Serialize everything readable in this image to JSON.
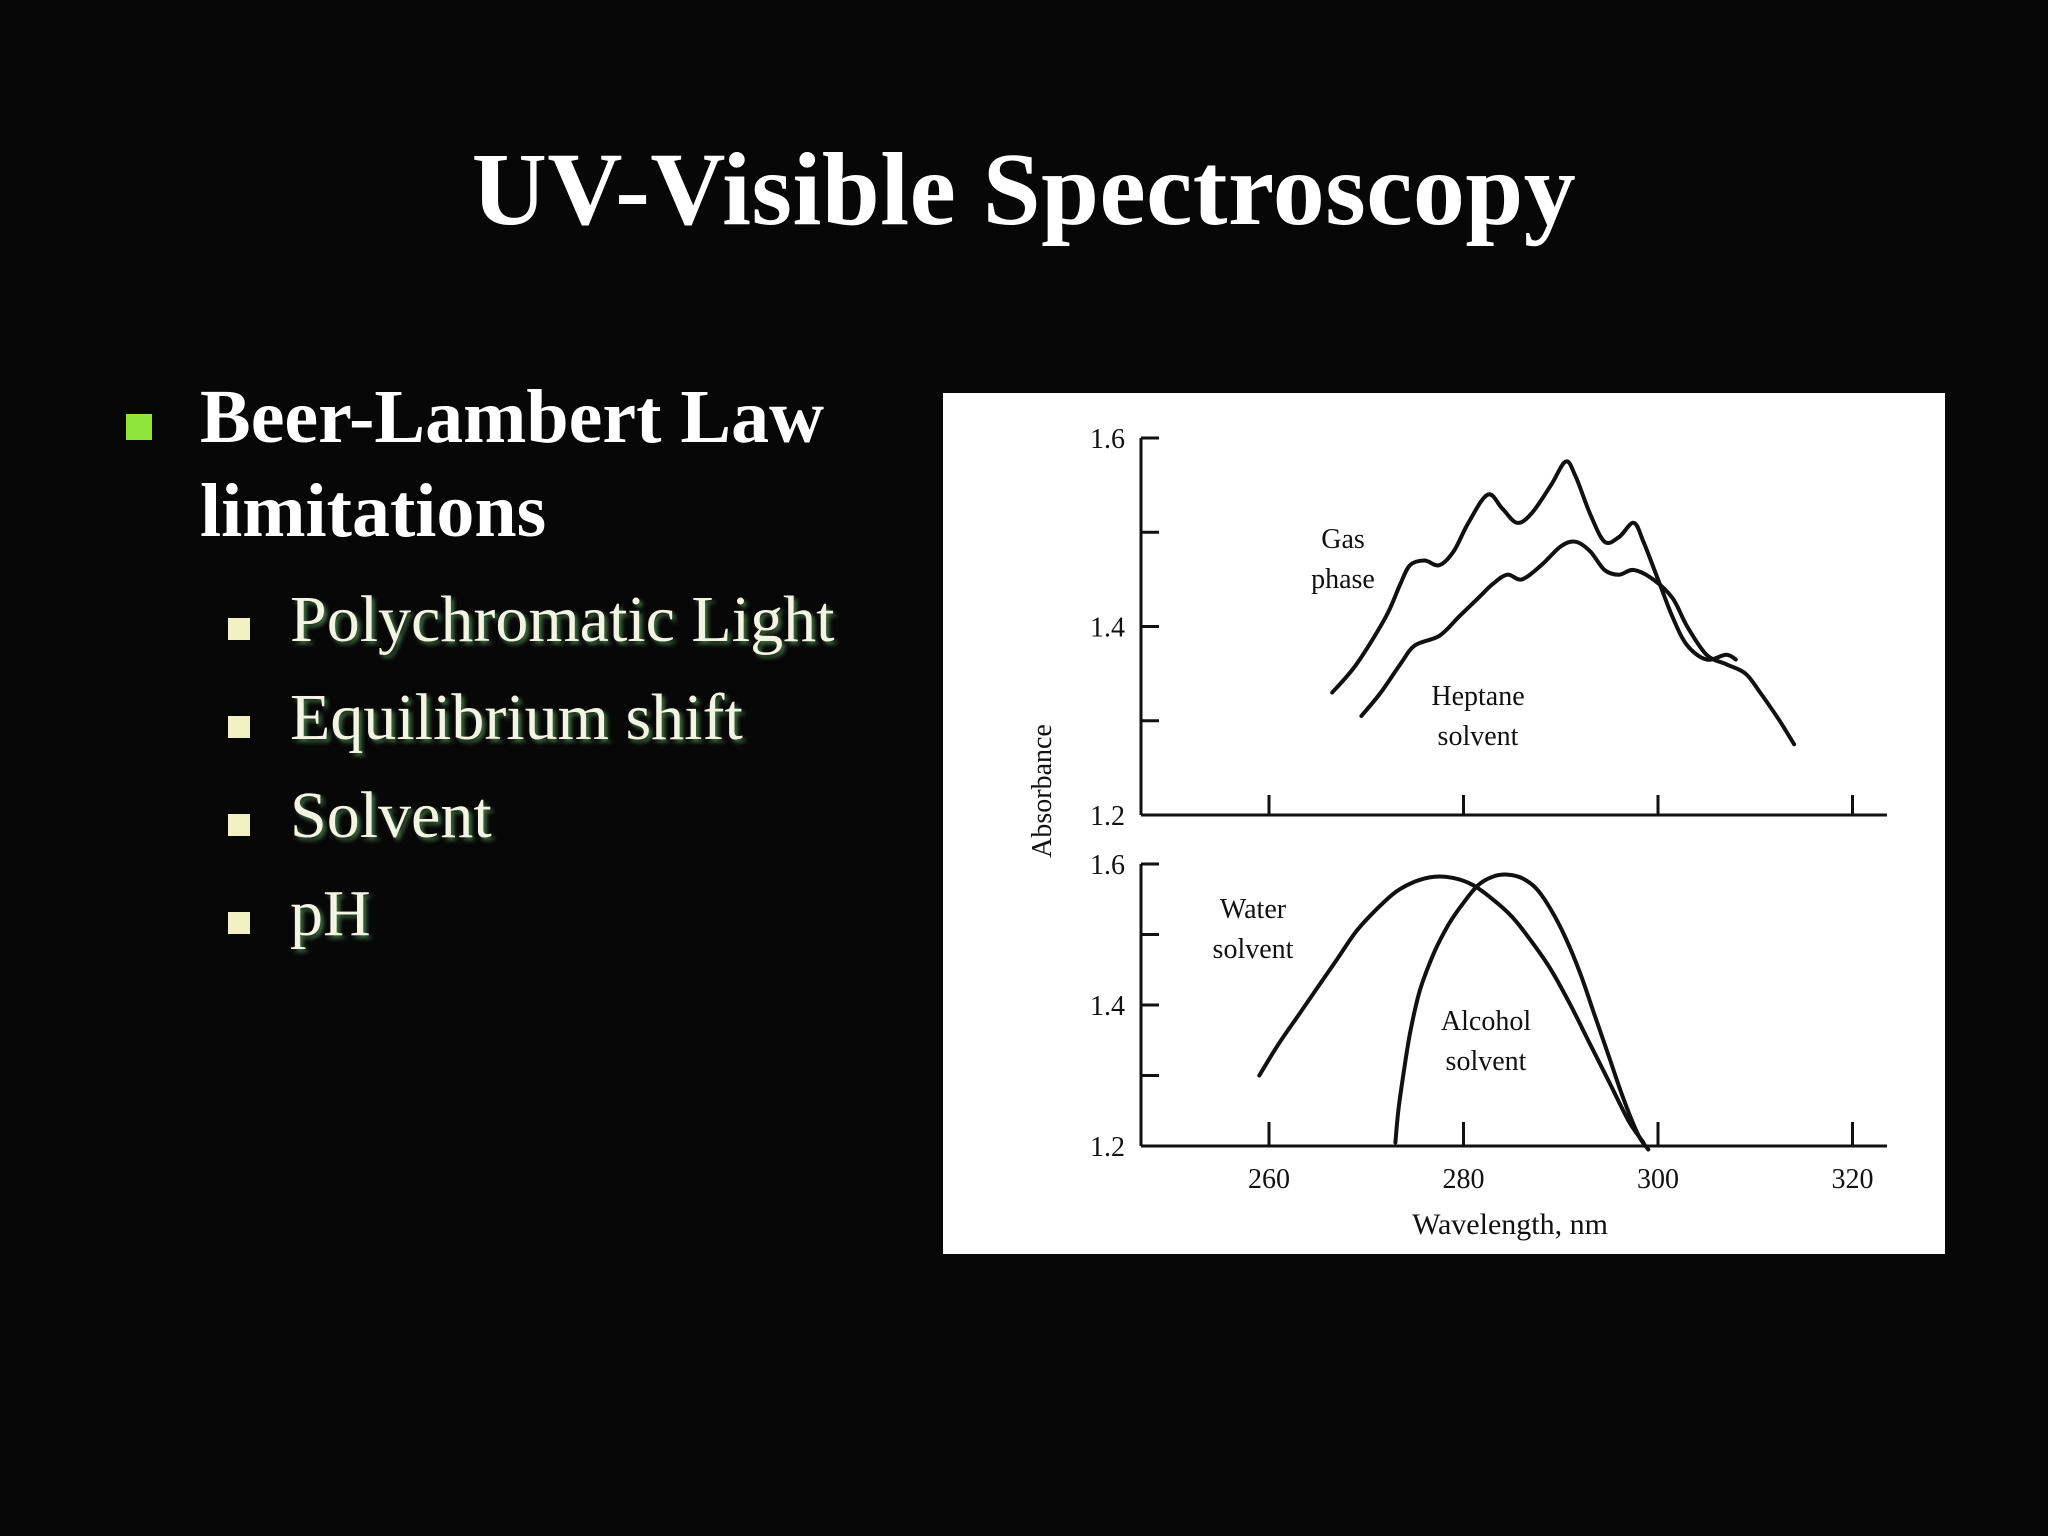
{
  "slide": {
    "title": "UV-Visible Spectroscopy",
    "bullet": {
      "text": "Beer-Lambert Law limitations",
      "bullet_color": "#8ee63c"
    },
    "sub_bullets": [
      "Polychromatic Light",
      "Equilibrium shift",
      "Solvent",
      "pH"
    ],
    "sub_bullet_color": "#f1f1c4"
  },
  "chart_data": [
    {
      "type": "line",
      "title": "",
      "xlabel": "",
      "ylabel": "Absorbance",
      "xlim": [
        250,
        323
      ],
      "ylim": [
        1.2,
        1.6
      ],
      "yticks": [
        "1.6",
        "1.4",
        "1.2"
      ],
      "series": [
        {
          "name": "Gas phase",
          "label_lines": [
            "Gas",
            "phase"
          ],
          "x": [
            266.5,
            269,
            272,
            273.5,
            274.5,
            276,
            277.5,
            279,
            280.5,
            282.5,
            284,
            285.5,
            287,
            289,
            290.5,
            291.5,
            293,
            294.5,
            296,
            297.5,
            298.5,
            300,
            301.5,
            303,
            305,
            307,
            308
          ],
          "y": [
            1.33,
            1.36,
            1.41,
            1.445,
            1.465,
            1.47,
            1.465,
            1.48,
            1.51,
            1.54,
            1.525,
            1.51,
            1.52,
            1.55,
            1.575,
            1.56,
            1.52,
            1.49,
            1.495,
            1.51,
            1.49,
            1.45,
            1.41,
            1.38,
            1.365,
            1.37,
            1.365
          ]
        },
        {
          "name": "Heptane solvent",
          "label_lines": [
            "Heptane",
            "solvent"
          ],
          "x": [
            269.5,
            271.5,
            273.5,
            275,
            277.5,
            279.5,
            281.5,
            283,
            284.5,
            286,
            288,
            290,
            291.5,
            293,
            294.5,
            296,
            297.5,
            299.5,
            301.5,
            303,
            305,
            307,
            309,
            310.5,
            312.5,
            314
          ],
          "y": [
            1.305,
            1.33,
            1.36,
            1.38,
            1.39,
            1.41,
            1.43,
            1.445,
            1.455,
            1.45,
            1.465,
            1.485,
            1.49,
            1.48,
            1.46,
            1.455,
            1.46,
            1.45,
            1.43,
            1.4,
            1.37,
            1.36,
            1.35,
            1.33,
            1.3,
            1.275
          ]
        }
      ]
    },
    {
      "type": "line",
      "title": "",
      "xlabel": "Wavelength, nm",
      "ylabel": "Absorbance",
      "xlim": [
        250,
        323
      ],
      "ylim": [
        1.2,
        1.6
      ],
      "xticks": [
        "260",
        "280",
        "300",
        "320"
      ],
      "yticks": [
        "1.6",
        "1.4",
        "1.2"
      ],
      "series": [
        {
          "name": "Water solvent",
          "label_lines": [
            "Water",
            "solvent"
          ],
          "x": [
            259,
            261,
            263,
            265,
            267,
            269,
            271,
            273,
            275,
            277,
            279,
            281,
            283,
            285,
            287,
            289,
            291,
            293,
            295,
            297,
            298.5
          ],
          "y": [
            1.3,
            1.345,
            1.385,
            1.425,
            1.465,
            1.505,
            1.535,
            1.56,
            1.575,
            1.582,
            1.58,
            1.57,
            1.55,
            1.525,
            1.49,
            1.45,
            1.4,
            1.345,
            1.29,
            1.235,
            1.205
          ]
        },
        {
          "name": "Alcohol solvent",
          "label_lines": [
            "Alcohol",
            "solvent"
          ],
          "x": [
            273,
            273.3,
            273.8,
            274.5,
            275.5,
            277,
            278.5,
            280,
            281.5,
            283,
            284.5,
            286,
            287.5,
            289,
            290.5,
            292,
            293.5,
            295,
            296.5,
            298,
            299
          ],
          "y": [
            1.205,
            1.25,
            1.3,
            1.36,
            1.42,
            1.475,
            1.515,
            1.545,
            1.57,
            1.582,
            1.585,
            1.58,
            1.565,
            1.535,
            1.495,
            1.445,
            1.385,
            1.325,
            1.265,
            1.215,
            1.195
          ]
        }
      ]
    }
  ]
}
